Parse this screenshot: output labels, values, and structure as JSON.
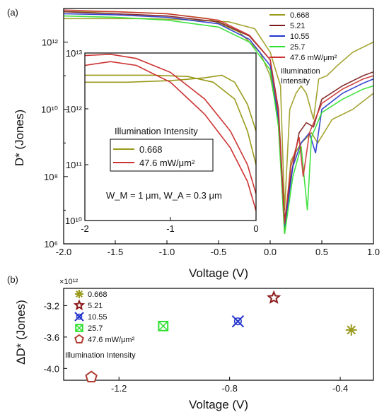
{
  "chart_data": [
    {
      "panel": "(a)",
      "type": "line",
      "xlabel": "Voltage (V)",
      "ylabel": "D* (Jones)",
      "xlim": [
        -2.0,
        1.0
      ],
      "ylim": [
        1000000.0,
        10000000000000.0
      ],
      "yscale": "log",
      "x_ticks": [
        "-2.0",
        "-1.5",
        "-1.0",
        "-0.5",
        "0.0",
        "0.5",
        "1.0"
      ],
      "y_ticks": [
        "10⁶",
        "10⁸",
        "10¹⁰",
        "10¹²"
      ],
      "legend_labels": [
        "0.668",
        "5.21",
        "10.55",
        "25.7",
        "47.6 mW/μm²"
      ],
      "legend_placement": "top-right",
      "annotation": [
        "Illumination",
        "Intensity"
      ],
      "series": [
        {
          "label": "0.668",
          "color": "#9a9a1c",
          "points": [
            [
              -2.0,
              5000000000000.0
            ],
            [
              -1.6,
              5000000000000.0
            ],
            [
              -1.2,
              5000000000000.0
            ],
            [
              -0.8,
              4600000000000.0
            ],
            [
              -0.4,
              4000000000000.0
            ],
            [
              -0.15,
              2500000000000.0
            ],
            [
              0.0,
              500000000000.0
            ],
            [
              0.1,
              50000000000.0
            ],
            [
              0.14,
              10000000.0
            ],
            [
              0.19,
              10000000000.0
            ],
            [
              0.25,
              30000000000.0
            ],
            [
              0.3,
              50000000000.0
            ],
            [
              0.35,
              30000000000.0
            ],
            [
              0.42,
              5000000000.0
            ],
            [
              0.47,
              80000000000.0
            ],
            [
              0.55,
              100000000000.0
            ],
            [
              0.65,
              200000000000.0
            ],
            [
              0.8,
              500000000000.0
            ],
            [
              1.0,
              1000000000000.0
            ]
          ]
        },
        {
          "label": "0.668",
          "color": "#9a9a1c",
          "points": [
            [
              -2.0,
              8000000000000.0
            ],
            [
              -1.5,
              8000000000000.0
            ],
            [
              -1.0,
              7000000000000.0
            ],
            [
              -0.6,
              5000000000000.0
            ],
            [
              -0.3,
              2000000000000.0
            ],
            [
              -0.1,
              500000000000.0
            ],
            [
              0.0,
              100000000000.0
            ],
            [
              0.08,
              5000000000.0
            ],
            [
              0.14,
              2000000.0
            ],
            [
              0.2,
              300000000.0
            ],
            [
              0.3,
              1000000000.0
            ],
            [
              0.4,
              2000000000.0
            ],
            [
              0.46,
              1000000000.0
            ],
            [
              0.6,
              5000000000.0
            ],
            [
              0.8,
              10000000000.0
            ],
            [
              1.0,
              30000000000.0
            ]
          ]
        },
        {
          "label": "5.21",
          "color": "#7a1a1a",
          "points": [
            [
              -2.0,
              8000000000000.0
            ],
            [
              -1.5,
              7000000000000.0
            ],
            [
              -1.0,
              6000000000000.0
            ],
            [
              -0.5,
              4000000000000.0
            ],
            [
              -0.2,
              1500000000000.0
            ],
            [
              0.0,
              300000000000.0
            ],
            [
              0.08,
              10000000000.0
            ],
            [
              0.14,
              5000000.0
            ],
            [
              0.2,
              100000000.0
            ],
            [
              0.28,
              2000000000.0
            ],
            [
              0.35,
              4000000000.0
            ],
            [
              0.42,
              3000000000.0
            ],
            [
              0.5,
              20000000000.0
            ],
            [
              0.7,
              50000000000.0
            ],
            [
              0.9,
              100000000000.0
            ],
            [
              1.0,
              130000000000.0
            ]
          ]
        },
        {
          "label": "10.55",
          "color": "#2233cc",
          "points": [
            [
              -2.0,
              7000000000000.0
            ],
            [
              -1.5,
              6500000000000.0
            ],
            [
              -1.0,
              5500000000000.0
            ],
            [
              -0.5,
              3500000000000.0
            ],
            [
              -0.2,
              1200000000000.0
            ],
            [
              0.0,
              200000000000.0
            ],
            [
              0.08,
              5000000000.0
            ],
            [
              0.14,
              3000000.0
            ],
            [
              0.22,
              200000000.0
            ],
            [
              0.3,
              1000000000.0
            ],
            [
              0.38,
              2000000000.0
            ],
            [
              0.44,
              500000000.0
            ],
            [
              0.5,
              10000000000.0
            ],
            [
              0.7,
              30000000000.0
            ],
            [
              0.9,
              60000000000.0
            ],
            [
              1.0,
              80000000000.0
            ]
          ]
        },
        {
          "label": "25.7",
          "color": "#2fe02f",
          "points": [
            [
              -2.0,
              6000000000000.0
            ],
            [
              -1.5,
              5500000000000.0
            ],
            [
              -1.0,
              4500000000000.0
            ],
            [
              -0.5,
              2800000000000.0
            ],
            [
              -0.2,
              1000000000000.0
            ],
            [
              0.0,
              150000000000.0
            ],
            [
              0.08,
              3000000000.0
            ],
            [
              0.14,
              2000000.0
            ],
            [
              0.22,
              100000000.0
            ],
            [
              0.3,
              800000000.0
            ],
            [
              0.36,
              10000000.0
            ],
            [
              0.4,
              1500000000.0
            ],
            [
              0.5,
              8000000000.0
            ],
            [
              0.7,
              20000000000.0
            ],
            [
              0.9,
              40000000000.0
            ],
            [
              1.0,
              50000000000.0
            ]
          ]
        },
        {
          "label": "47.6 mW/μm²",
          "color": "#cc3333",
          "points": [
            [
              -2.0,
              9000000000000.0
            ],
            [
              -1.5,
              8000000000000.0
            ],
            [
              -1.0,
              7000000000000.0
            ],
            [
              -0.5,
              4500000000000.0
            ],
            [
              -0.2,
              1600000000000.0
            ],
            [
              0.0,
              300000000000.0
            ],
            [
              0.08,
              8000000000.0
            ],
            [
              0.14,
              4000000.0
            ],
            [
              0.2,
              200000000.0
            ],
            [
              0.28,
              1500000000.0
            ],
            [
              0.32,
              100000000.0
            ],
            [
              0.38,
              2000000000.0
            ],
            [
              0.5,
              15000000000.0
            ],
            [
              0.7,
              40000000000.0
            ],
            [
              0.9,
              80000000000.0
            ],
            [
              1.0,
              100000000000.0
            ]
          ]
        }
      ],
      "inset": {
        "xlim": [
          -2,
          0
        ],
        "ylim": [
          10000000000.0,
          10000000000000.0
        ],
        "yscale": "log",
        "x_ticks": [
          "-2",
          "-1",
          "0"
        ],
        "y_ticks": [
          "10¹⁰",
          "10¹¹",
          "10¹²",
          "10¹³"
        ],
        "legend_title": "Illumination Intensity",
        "legend_labels": [
          "0.668",
          "47.6 mW/μm²"
        ],
        "annotation": "W_M = 1 μm, W_A = 0.3 μm",
        "series": [
          {
            "label": "0.668",
            "color": "#9a9a1c",
            "points": [
              [
                -2.0,
                3000000000000.0
              ],
              [
                -1.5,
                3000000000000.0
              ],
              [
                -1.0,
                3200000000000.0
              ],
              [
                -0.6,
                3600000000000.0
              ],
              [
                -0.4,
                4000000000000.0
              ],
              [
                -0.25,
                3000000000000.0
              ],
              [
                -0.1,
                1200000000000.0
              ],
              [
                0.0,
                400000000000.0
              ]
            ]
          },
          {
            "label": "0.668",
            "color": "#9a9a1c",
            "points": [
              [
                -2.0,
                4000000000000.0
              ],
              [
                -1.6,
                4000000000000.0
              ],
              [
                -1.2,
                4000000000000.0
              ],
              [
                -0.8,
                3800000000000.0
              ],
              [
                -0.5,
                3000000000000.0
              ],
              [
                -0.25,
                1500000000000.0
              ],
              [
                -0.1,
                400000000000.0
              ],
              [
                0.0,
                100000000000.0
              ]
            ]
          },
          {
            "label": "47.6 mW/μm²",
            "color": "#cc3333",
            "points": [
              [
                -2.0,
                9000000000000.0
              ],
              [
                -1.7,
                9500000000000.0
              ],
              [
                -1.4,
                8000000000000.0
              ],
              [
                -1.0,
                4500000000000.0
              ],
              [
                -0.6,
                1500000000000.0
              ],
              [
                -0.3,
                400000000000.0
              ],
              [
                -0.1,
                100000000000.0
              ],
              [
                0.0,
                30000000000.0
              ]
            ]
          },
          {
            "label": "47.6 mW/μm²",
            "color": "#cc3333",
            "points": [
              [
                -2.0,
                6000000000000.0
              ],
              [
                -1.7,
                7000000000000.0
              ],
              [
                -1.4,
                6000000000000.0
              ],
              [
                -1.0,
                3000000000000.0
              ],
              [
                -0.6,
                800000000000.0
              ],
              [
                -0.3,
                200000000000.0
              ],
              [
                -0.1,
                50000000000.0
              ],
              [
                0.0,
                15000000000.0
              ]
            ]
          }
        ]
      }
    },
    {
      "panel": "(b)",
      "type": "scatter",
      "xlabel": "Voltage (V)",
      "ylabel": "ΔD* (Jones)",
      "xlim": [
        -1.4,
        -0.28
      ],
      "ylim": [
        -4.15,
        -2.98
      ],
      "y_multiplier": "×10¹²",
      "x_ticks": [
        "-1.2",
        "-0.8",
        "-0.4"
      ],
      "y_ticks": [
        "-3.2",
        "-3.6",
        "-4.0"
      ],
      "legend_labels": [
        "0.668",
        "5.21",
        "10.55",
        "25.7",
        "47.6 mW/μm²"
      ],
      "legend_placement": "top-left",
      "annotation": "Illumination Intensity",
      "points": [
        {
          "label": "0.668",
          "x": -0.36,
          "y": -3.51,
          "marker": "asterisk",
          "color": "#9a9a1c"
        },
        {
          "label": "5.21",
          "x": -0.64,
          "y": -3.1,
          "marker": "star",
          "color": "#8b1a1a"
        },
        {
          "label": "10.55",
          "x": -0.77,
          "y": -3.4,
          "marker": "x-circle",
          "color": "#2233cc"
        },
        {
          "label": "25.7",
          "x": -1.04,
          "y": -3.46,
          "marker": "x-square",
          "color": "#2fe02f"
        },
        {
          "label": "47.6 mW/μm²",
          "x": -1.3,
          "y": -4.11,
          "marker": "pentagon",
          "color": "#b03a2e"
        }
      ]
    }
  ]
}
